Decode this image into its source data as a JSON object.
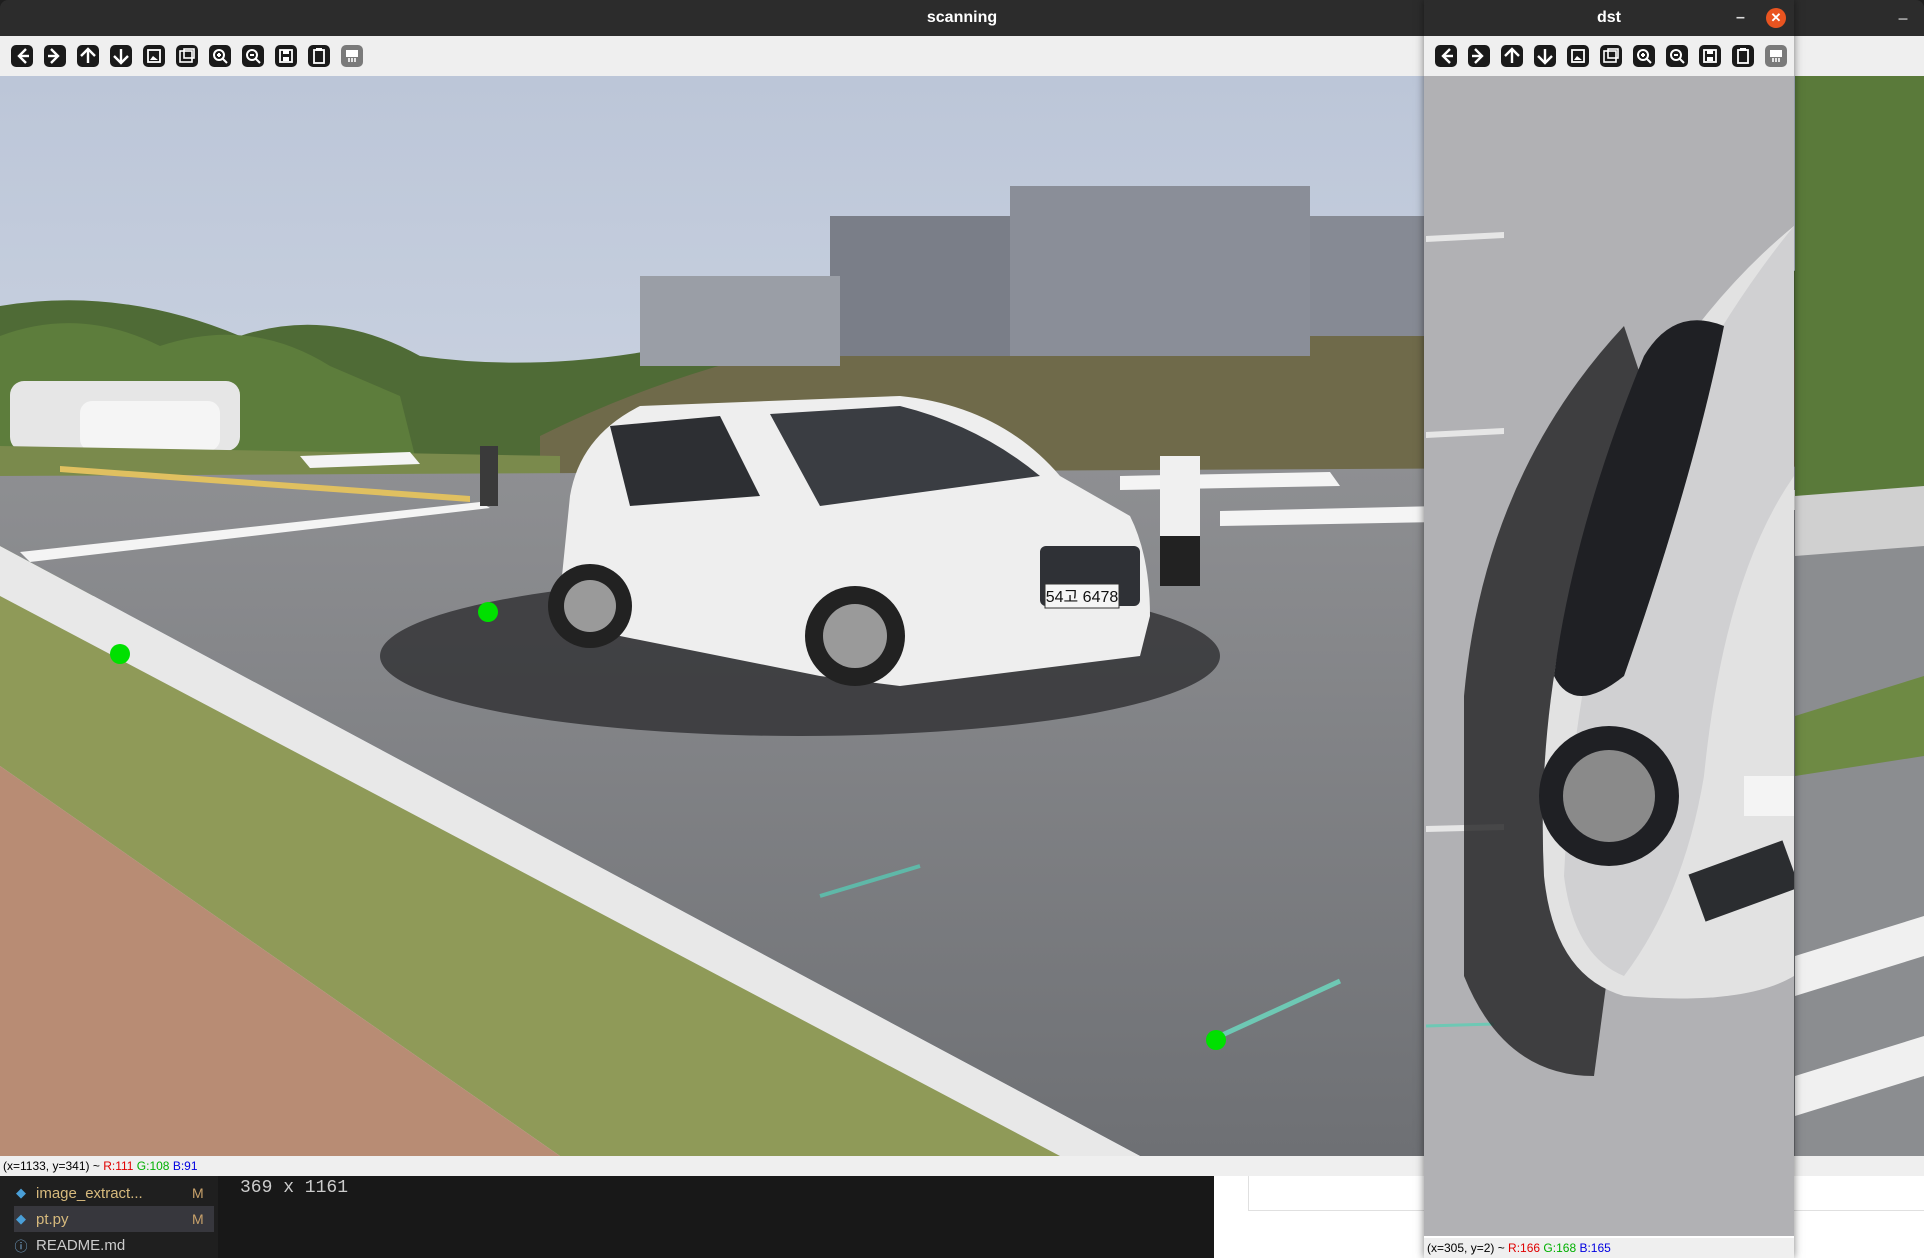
{
  "scanning_window": {
    "title": "scanning",
    "status": {
      "coords": "(x=1133, y=341) ~ ",
      "r": "R:111",
      "g": "G:108",
      "b": "B:91"
    }
  },
  "dst_window": {
    "title": "dst",
    "status": {
      "coords": "(x=305, y=2) ~ ",
      "r": "R:166",
      "g": "G:168",
      "b": "B:165"
    }
  },
  "toolbar_icons": [
    "arrow-left-icon",
    "arrow-right-icon",
    "arrow-up-icon",
    "arrow-down-icon",
    "fit-image-icon",
    "zoom-original-icon",
    "zoom-in-icon",
    "zoom-out-icon",
    "save-icon",
    "copy-clipboard-icon",
    "properties-icon"
  ],
  "scene": {
    "license_plate": "54고 6478"
  },
  "editor": {
    "explorer_items": [
      {
        "label": "image_extract...",
        "badge": "M"
      },
      {
        "label": "pt.py",
        "badge": "M"
      },
      {
        "label": "README.md",
        "badge": ""
      }
    ],
    "output_text": "369 x 1161"
  },
  "colors": {
    "marker": "#00e000",
    "titlebar": "#2c2c2c",
    "toolbar": "#efefef",
    "close": "#e95420"
  }
}
